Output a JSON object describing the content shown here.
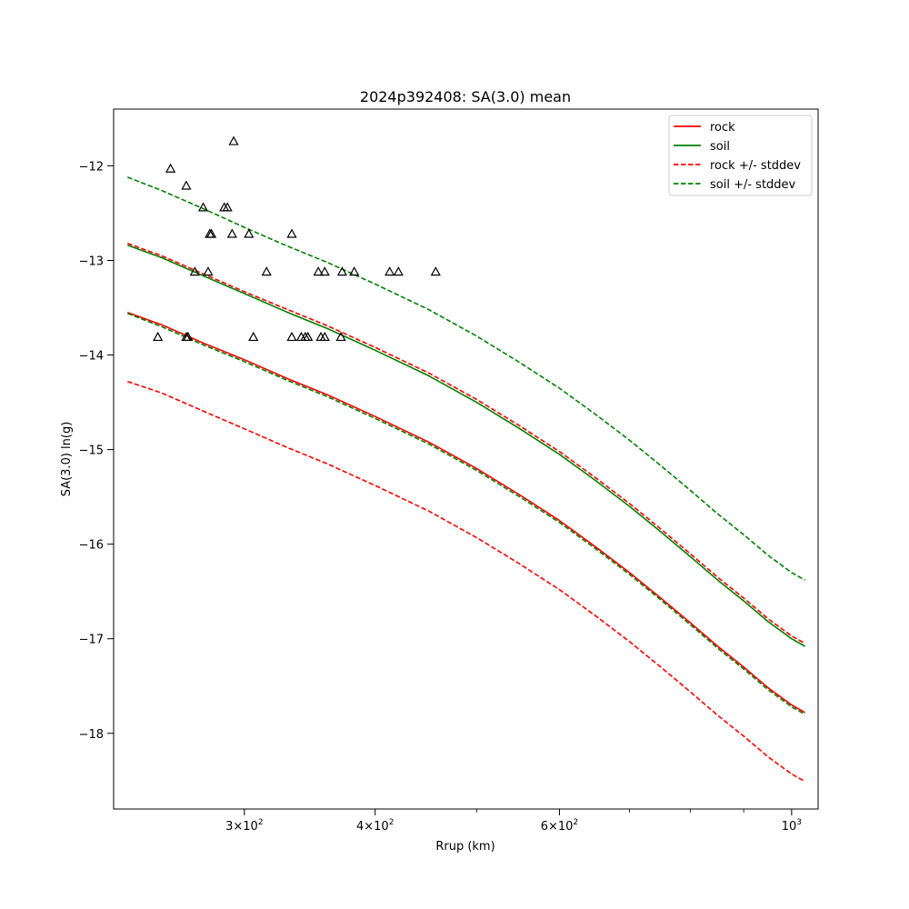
{
  "chart_data": {
    "type": "line",
    "title": "2024p392408: SA(3.0) mean",
    "xlabel": "Rrup (km)",
    "ylabel": "SA(3.0) ln(g)",
    "xscale": "log",
    "xlim": [
      225,
      1060
    ],
    "ylim": [
      -18.8,
      -11.4
    ],
    "grid": false,
    "legend_position": "top-right",
    "x_ticks": [
      {
        "value": 300,
        "base": "3×10",
        "exp": "2"
      },
      {
        "value": 400,
        "base": "4×10",
        "exp": "2"
      },
      {
        "value": 600,
        "base": "6×10",
        "exp": "2"
      },
      {
        "value": 1000,
        "base": "10",
        "exp": "3"
      }
    ],
    "x_minor_ticks": [
      500,
      700,
      800,
      900
    ],
    "y_ticks": [
      {
        "value": -18,
        "label": "−18"
      },
      {
        "value": -17,
        "label": "−17"
      },
      {
        "value": -16,
        "label": "−16"
      },
      {
        "value": -15,
        "label": "−15"
      },
      {
        "value": -14,
        "label": "−14"
      },
      {
        "value": -13,
        "label": "−13"
      },
      {
        "value": -12,
        "label": "−12"
      }
    ],
    "colors": {
      "rock": "#ff0000",
      "soil": "#008000",
      "observed": "#000000"
    },
    "legend": [
      {
        "label": "rock",
        "color": "#ff0000",
        "dash": false
      },
      {
        "label": "soil",
        "color": "#008000",
        "dash": false
      },
      {
        "label": "rock +/- stddev",
        "color": "#ff0000",
        "dash": true
      },
      {
        "label": "soil +/- stddev",
        "color": "#008000",
        "dash": true
      }
    ],
    "x": [
      232,
      250,
      275,
      300,
      330,
      360,
      400,
      450,
      500,
      550,
      600,
      650,
      700,
      750,
      800,
      850,
      900,
      950,
      1000,
      1030
    ],
    "series": [
      {
        "name": "rock",
        "key": "rock_mean",
        "color": "#ff0000",
        "dash": false,
        "values": [
          -13.55,
          -13.68,
          -13.88,
          -14.05,
          -14.25,
          -14.42,
          -14.65,
          -14.92,
          -15.2,
          -15.48,
          -15.75,
          -16.03,
          -16.3,
          -16.57,
          -16.83,
          -17.08,
          -17.3,
          -17.52,
          -17.7,
          -17.78
        ]
      },
      {
        "name": "soil",
        "key": "soil_mean",
        "color": "#008000",
        "dash": false,
        "values": [
          -12.84,
          -12.97,
          -13.17,
          -13.35,
          -13.55,
          -13.72,
          -13.95,
          -14.22,
          -14.5,
          -14.78,
          -15.05,
          -15.33,
          -15.6,
          -15.87,
          -16.13,
          -16.38,
          -16.6,
          -16.82,
          -17.0,
          -17.08
        ]
      },
      {
        "name": "rock +/- stddev",
        "key": "rock_plus",
        "color": "#ff0000",
        "dash": true,
        "values": [
          -12.82,
          -12.95,
          -13.15,
          -13.33,
          -13.52,
          -13.69,
          -13.92,
          -14.19,
          -14.47,
          -14.75,
          -15.02,
          -15.3,
          -15.57,
          -15.84,
          -16.1,
          -16.35,
          -16.57,
          -16.79,
          -16.97,
          -17.05
        ]
      },
      {
        "name": "rock +/- stddev",
        "key": "rock_minus",
        "color": "#ff0000",
        "dash": true,
        "values": [
          -14.28,
          -14.4,
          -14.6,
          -14.78,
          -14.98,
          -15.15,
          -15.38,
          -15.65,
          -15.93,
          -16.21,
          -16.48,
          -16.76,
          -17.03,
          -17.3,
          -17.56,
          -17.81,
          -18.03,
          -18.25,
          -18.43,
          -18.51
        ]
      },
      {
        "name": "soil +/- stddev",
        "key": "soil_plus",
        "color": "#008000",
        "dash": true,
        "values": [
          -12.12,
          -12.26,
          -12.46,
          -12.65,
          -12.85,
          -13.02,
          -13.25,
          -13.52,
          -13.8,
          -14.08,
          -14.35,
          -14.63,
          -14.9,
          -15.17,
          -15.43,
          -15.68,
          -15.9,
          -16.12,
          -16.3,
          -16.38
        ]
      },
      {
        "name": "soil +/- stddev",
        "key": "soil_minus",
        "color": "#008000",
        "dash": true,
        "values": [
          -13.56,
          -13.7,
          -13.9,
          -14.07,
          -14.27,
          -14.44,
          -14.67,
          -14.94,
          -15.22,
          -15.5,
          -15.77,
          -16.05,
          -16.32,
          -16.59,
          -16.85,
          -17.1,
          -17.32,
          -17.54,
          -17.72,
          -17.8
        ]
      }
    ],
    "observations": [
      {
        "x": 293,
        "y": -11.74
      },
      {
        "x": 255,
        "y": -12.03
      },
      {
        "x": 264,
        "y": -12.21
      },
      {
        "x": 274,
        "y": -12.44
      },
      {
        "x": 287,
        "y": -12.44
      },
      {
        "x": 289,
        "y": -12.44
      },
      {
        "x": 278,
        "y": -12.72
      },
      {
        "x": 279,
        "y": -12.72
      },
      {
        "x": 292,
        "y": -12.72
      },
      {
        "x": 303,
        "y": -12.72
      },
      {
        "x": 333,
        "y": -12.72
      },
      {
        "x": 269,
        "y": -13.12
      },
      {
        "x": 277,
        "y": -13.12
      },
      {
        "x": 315,
        "y": -13.12
      },
      {
        "x": 353,
        "y": -13.12
      },
      {
        "x": 358,
        "y": -13.12
      },
      {
        "x": 372,
        "y": -13.12
      },
      {
        "x": 382,
        "y": -13.12
      },
      {
        "x": 413,
        "y": -13.12
      },
      {
        "x": 421,
        "y": -13.12
      },
      {
        "x": 457,
        "y": -13.12
      },
      {
        "x": 248,
        "y": -13.81
      },
      {
        "x": 264,
        "y": -13.81
      },
      {
        "x": 265,
        "y": -13.81
      },
      {
        "x": 306,
        "y": -13.81
      },
      {
        "x": 333,
        "y": -13.81
      },
      {
        "x": 340,
        "y": -13.81
      },
      {
        "x": 343,
        "y": -13.81
      },
      {
        "x": 345,
        "y": -13.81
      },
      {
        "x": 355,
        "y": -13.81
      },
      {
        "x": 358,
        "y": -13.81
      },
      {
        "x": 371,
        "y": -13.81
      }
    ]
  }
}
